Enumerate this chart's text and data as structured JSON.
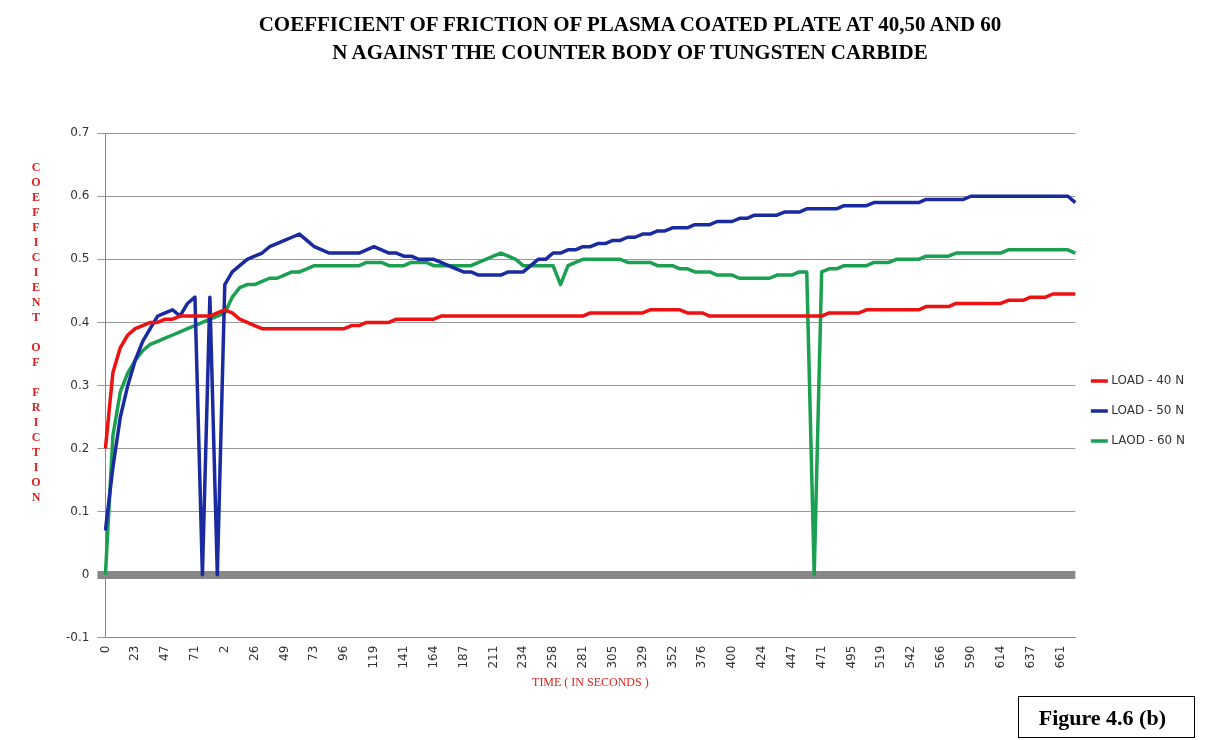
{
  "chart_data": {
    "type": "line",
    "title": "COEFFICIENT OF FRICTION OF PLASMA COATED PLATE AT 40,50 AND 60 N AGAINST THE COUNTER BODY OF TUNGSTEN CARBIDE",
    "xlabel": "TIME ( IN SECONDS )",
    "ylabel": "COEFFICIENT OF FRICTION",
    "categories": [
      "0",
      null,
      null,
      null,
      "23",
      null,
      null,
      null,
      "47",
      null,
      null,
      null,
      "71",
      null,
      null,
      null,
      "2",
      null,
      null,
      null,
      "26",
      null,
      null,
      null,
      "49",
      null,
      null,
      null,
      "73",
      null,
      null,
      null,
      "96",
      null,
      null,
      null,
      "119",
      null,
      null,
      null,
      "141",
      null,
      null,
      null,
      "164",
      null,
      null,
      null,
      "187",
      null,
      null,
      null,
      "211",
      null,
      null,
      null,
      "234",
      null,
      null,
      null,
      "258",
      null,
      null,
      null,
      "281",
      null,
      null,
      null,
      "305",
      null,
      null,
      null,
      "329",
      null,
      null,
      null,
      "352",
      null,
      null,
      null,
      "376",
      null,
      null,
      null,
      "400",
      null,
      null,
      null,
      "424",
      null,
      null,
      null,
      "447",
      null,
      null,
      null,
      "471",
      null,
      null,
      null,
      "495",
      null,
      null,
      null,
      "519",
      null,
      null,
      null,
      "542",
      null,
      null,
      null,
      "566",
      null,
      null,
      null,
      "590",
      null,
      null,
      null,
      "614",
      null,
      null,
      null,
      "637",
      null,
      null,
      null,
      "661",
      null,
      null
    ],
    "series": [
      {
        "name": "LOAD - 40 N",
        "color": "#ee1111",
        "values": [
          0.2,
          0.32,
          0.36,
          0.38,
          0.39,
          0.395,
          0.4,
          0.4,
          0.405,
          0.405,
          0.41,
          0.41,
          0.41,
          0.41,
          0.41,
          0.415,
          0.42,
          0.415,
          0.405,
          0.4,
          0.395,
          0.39,
          0.39,
          0.39,
          0.39,
          0.39,
          0.39,
          0.39,
          0.39,
          0.39,
          0.39,
          0.39,
          0.39,
          0.395,
          0.395,
          0.4,
          0.4,
          0.4,
          0.4,
          0.405,
          0.405,
          0.405,
          0.405,
          0.405,
          0.405,
          0.41,
          0.41,
          0.41,
          0.41,
          0.41,
          0.41,
          0.41,
          0.41,
          0.41,
          0.41,
          0.41,
          0.41,
          0.41,
          0.41,
          0.41,
          0.41,
          0.41,
          0.41,
          0.41,
          0.41,
          0.415,
          0.415,
          0.415,
          0.415,
          0.415,
          0.415,
          0.415,
          0.415,
          0.42,
          0.42,
          0.42,
          0.42,
          0.42,
          0.415,
          0.415,
          0.415,
          0.41,
          0.41,
          0.41,
          0.41,
          0.41,
          0.41,
          0.41,
          0.41,
          0.41,
          0.41,
          0.41,
          0.41,
          0.41,
          0.41,
          0.41,
          0.41,
          0.415,
          0.415,
          0.415,
          0.415,
          0.415,
          0.42,
          0.42,
          0.42,
          0.42,
          0.42,
          0.42,
          0.42,
          0.42,
          0.425,
          0.425,
          0.425,
          0.425,
          0.43,
          0.43,
          0.43,
          0.43,
          0.43,
          0.43,
          0.43,
          0.435,
          0.435,
          0.435,
          0.44,
          0.44,
          0.44,
          0.445,
          0.445,
          0.445,
          0.445
        ]
      },
      {
        "name": "LOAD - 50 N",
        "color": "#1a2aa0",
        "values": [
          0.07,
          0.17,
          0.25,
          0.3,
          0.34,
          0.37,
          0.39,
          0.41,
          0.415,
          0.42,
          0.41,
          0.43,
          0.44,
          0,
          0.44,
          0,
          0.46,
          0.48,
          0.49,
          0.5,
          0.505,
          0.51,
          0.52,
          0.525,
          0.53,
          0.535,
          0.54,
          0.53,
          0.52,
          0.515,
          0.51,
          0.51,
          0.51,
          0.51,
          0.51,
          0.515,
          0.52,
          0.515,
          0.51,
          0.51,
          0.505,
          0.505,
          0.5,
          0.5,
          0.5,
          0.495,
          0.49,
          0.485,
          0.48,
          0.48,
          0.475,
          0.475,
          0.475,
          0.475,
          0.48,
          0.48,
          0.48,
          0.49,
          0.5,
          0.5,
          0.51,
          0.51,
          0.515,
          0.515,
          0.52,
          0.52,
          0.525,
          0.525,
          0.53,
          0.53,
          0.535,
          0.535,
          0.54,
          0.54,
          0.545,
          0.545,
          0.55,
          0.55,
          0.55,
          0.555,
          0.555,
          0.555,
          0.56,
          0.56,
          0.56,
          0.565,
          0.565,
          0.57,
          0.57,
          0.57,
          0.57,
          0.575,
          0.575,
          0.575,
          0.58,
          0.58,
          0.58,
          0.58,
          0.58,
          0.585,
          0.585,
          0.585,
          0.585,
          0.59,
          0.59,
          0.59,
          0.59,
          0.59,
          0.59,
          0.59,
          0.595,
          0.595,
          0.595,
          0.595,
          0.595,
          0.595,
          0.6,
          0.6,
          0.6,
          0.6,
          0.6,
          0.6,
          0.6,
          0.6,
          0.6,
          0.6,
          0.6,
          0.6,
          0.6,
          0.6,
          0.59
        ]
      },
      {
        "name": "LAOD - 60 N",
        "color": "#1aa050",
        "values": [
          0,
          0.22,
          0.29,
          0.32,
          0.34,
          0.355,
          0.365,
          0.37,
          0.375,
          0.38,
          0.385,
          0.39,
          0.395,
          0.4,
          0.405,
          0.41,
          0.415,
          0.44,
          0.455,
          0.46,
          0.46,
          0.465,
          0.47,
          0.47,
          0.475,
          0.48,
          0.48,
          0.485,
          0.49,
          0.49,
          0.49,
          0.49,
          0.49,
          0.49,
          0.49,
          0.495,
          0.495,
          0.495,
          0.49,
          0.49,
          0.49,
          0.495,
          0.495,
          0.495,
          0.49,
          0.49,
          0.49,
          0.49,
          0.49,
          0.49,
          0.495,
          0.5,
          0.505,
          0.51,
          0.505,
          0.5,
          0.49,
          0.49,
          0.49,
          0.49,
          0.49,
          0.46,
          0.49,
          0.495,
          0.5,
          0.5,
          0.5,
          0.5,
          0.5,
          0.5,
          0.495,
          0.495,
          0.495,
          0.495,
          0.49,
          0.49,
          0.49,
          0.485,
          0.485,
          0.48,
          0.48,
          0.48,
          0.475,
          0.475,
          0.475,
          0.47,
          0.47,
          0.47,
          0.47,
          0.47,
          0.475,
          0.475,
          0.475,
          0.48,
          0.48,
          0,
          0.48,
          0.485,
          0.485,
          0.49,
          0.49,
          0.49,
          0.49,
          0.495,
          0.495,
          0.495,
          0.5,
          0.5,
          0.5,
          0.5,
          0.505,
          0.505,
          0.505,
          0.505,
          0.51,
          0.51,
          0.51,
          0.51,
          0.51,
          0.51,
          0.51,
          0.515,
          0.515,
          0.515,
          0.515,
          0.515,
          0.515,
          0.515,
          0.515,
          0.515,
          0.51
        ]
      }
    ],
    "ylim": [
      -0.1,
      0.7
    ],
    "yticks": [
      -0.1,
      0,
      0.1,
      0.2,
      0.3,
      0.4,
      0.5,
      0.6,
      0.7
    ],
    "grid": "y",
    "legend": "right",
    "annotations": [
      "Figure 4.6 (b)"
    ]
  }
}
